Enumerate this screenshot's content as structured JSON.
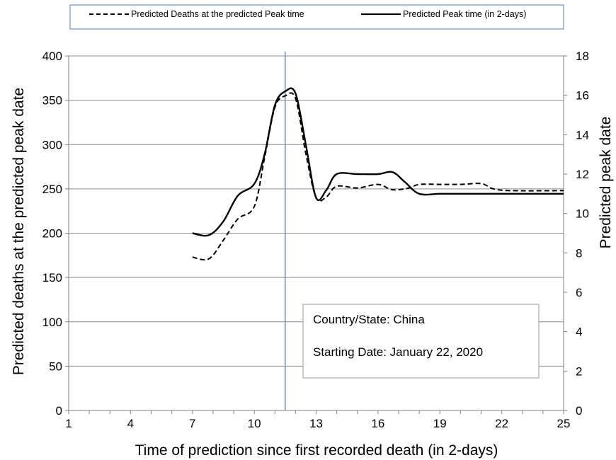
{
  "chart_data": {
    "type": "line",
    "legend": {
      "position": "top",
      "entries": [
        {
          "label": "Predicted Deaths at the predicted Peak time",
          "style": "dashed",
          "axis": "left"
        },
        {
          "label": "Predicted Peak time (in 2-days)",
          "style": "solid",
          "axis": "right"
        }
      ]
    },
    "xlabel": "Time of prediction since first recorded death (in 2-days)",
    "ylabel_left": "Predicted deaths at the predicted peak date",
    "ylabel_right": "Predicted peak date",
    "xlim": [
      1,
      25
    ],
    "ylim_left": [
      0,
      400
    ],
    "ylim_right": [
      0,
      18
    ],
    "x_ticks": [
      1,
      4,
      7,
      10,
      13,
      16,
      19,
      22,
      25
    ],
    "y_ticks_left": [
      0,
      50,
      100,
      150,
      200,
      250,
      300,
      350,
      400
    ],
    "y_ticks_right": [
      0,
      2,
      4,
      6,
      8,
      10,
      12,
      14,
      16,
      18
    ],
    "grid": "horizontal",
    "vertical_reference_line": {
      "x": 11.5,
      "color": "#4a7ebb"
    },
    "series": [
      {
        "name": "Predicted Deaths at the predicted Peak time",
        "axis": "left",
        "style": "dashed",
        "points": [
          [
            7,
            173
          ],
          [
            7.8,
            171
          ],
          [
            8.5,
            192
          ],
          [
            9.2,
            216
          ],
          [
            10,
            230
          ],
          [
            10.5,
            285
          ],
          [
            11,
            342
          ],
          [
            11.5,
            355
          ],
          [
            12,
            352
          ],
          [
            12.5,
            290
          ],
          [
            13,
            240
          ],
          [
            13.5,
            241
          ],
          [
            14,
            253
          ],
          [
            15,
            251
          ],
          [
            16,
            255
          ],
          [
            16.7,
            249
          ],
          [
            17.5,
            251
          ],
          [
            18,
            255
          ],
          [
            19,
            255
          ],
          [
            20,
            255
          ],
          [
            21,
            256
          ],
          [
            21.6,
            250
          ],
          [
            22.5,
            248
          ],
          [
            25,
            248
          ]
        ]
      },
      {
        "name": "Predicted Peak time (in 2-days)",
        "axis": "right",
        "style": "solid",
        "points": [
          [
            7,
            9.0
          ],
          [
            7.8,
            8.9
          ],
          [
            8.5,
            9.6
          ],
          [
            9.2,
            10.9
          ],
          [
            10,
            11.5
          ],
          [
            10.5,
            13.0
          ],
          [
            11,
            15.5
          ],
          [
            11.5,
            16.2
          ],
          [
            12,
            16.1
          ],
          [
            12.5,
            13.5
          ],
          [
            13,
            10.8
          ],
          [
            13.5,
            11.2
          ],
          [
            14,
            12.0
          ],
          [
            15,
            12.0
          ],
          [
            16,
            12.0
          ],
          [
            16.7,
            12.1
          ],
          [
            17.3,
            11.6
          ],
          [
            18,
            11.0
          ],
          [
            19,
            11.0
          ],
          [
            20,
            11.0
          ],
          [
            21,
            11.0
          ],
          [
            22,
            11.0
          ],
          [
            25,
            11.0
          ]
        ]
      }
    ]
  },
  "info_box": {
    "country": "Country/State:  China",
    "start_date": "Starting Date:  January 22, 2020"
  }
}
